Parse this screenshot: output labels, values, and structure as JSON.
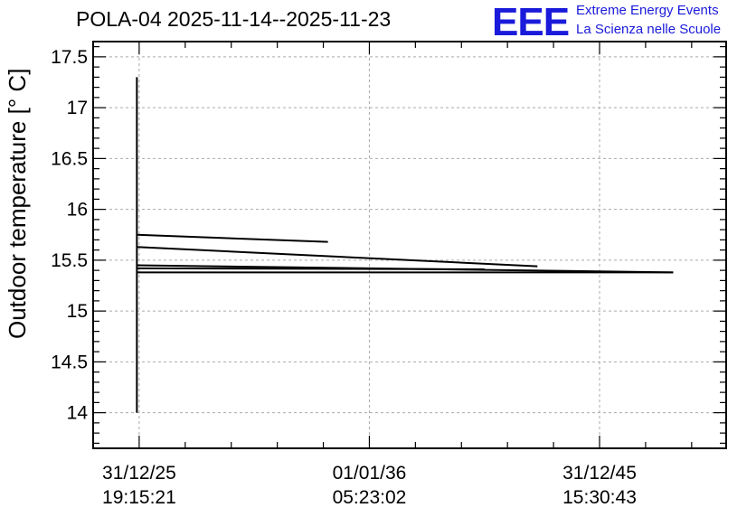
{
  "chart_data": {
    "type": "line",
    "title": "POLA-04 2025-11-14--2025-11-23",
    "ylabel": "Outdoor temperature [° C]",
    "xlabel": "",
    "ylim": [
      13.65,
      17.65
    ],
    "yticks": [
      "14",
      "14.5",
      "15",
      "15.5",
      "16",
      "16.5",
      "17",
      "17.5"
    ],
    "ytick_values": [
      14,
      14.5,
      15,
      15.5,
      16,
      16.5,
      17,
      17.5
    ],
    "xlim": [
      -0.2,
      2.55
    ],
    "xtick_values": [
      0,
      1,
      2
    ],
    "xticks": [
      {
        "date": "31/12/25",
        "time": "19:15:21"
      },
      {
        "date": "01/01/36",
        "time": "05:23:02"
      },
      {
        "date": "31/12/45",
        "time": "15:30:43"
      }
    ],
    "grid": true,
    "series": [
      {
        "segments": [
          [
            [
              -0.01,
              14.0
            ],
            [
              -0.01,
              17.3
            ]
          ],
          [
            [
              -0.01,
              15.75
            ],
            [
              0.82,
              15.68
            ]
          ],
          [
            [
              -0.01,
              15.63
            ],
            [
              1.73,
              15.44
            ]
          ],
          [
            [
              -0.01,
              15.45
            ],
            [
              2.32,
              15.38
            ]
          ],
          [
            [
              -0.01,
              15.38
            ],
            [
              2.32,
              15.38
            ]
          ],
          [
            [
              -0.01,
              15.42
            ],
            [
              1.5,
              15.41
            ]
          ]
        ]
      }
    ]
  },
  "logo": {
    "mark": "EEE",
    "line1": "Extreme Energy Events",
    "line2": "La Scienza nelle Scuole"
  },
  "colors": {
    "logo": "#1a1adb",
    "line": "#000000",
    "grid": "#aaaaaa"
  }
}
